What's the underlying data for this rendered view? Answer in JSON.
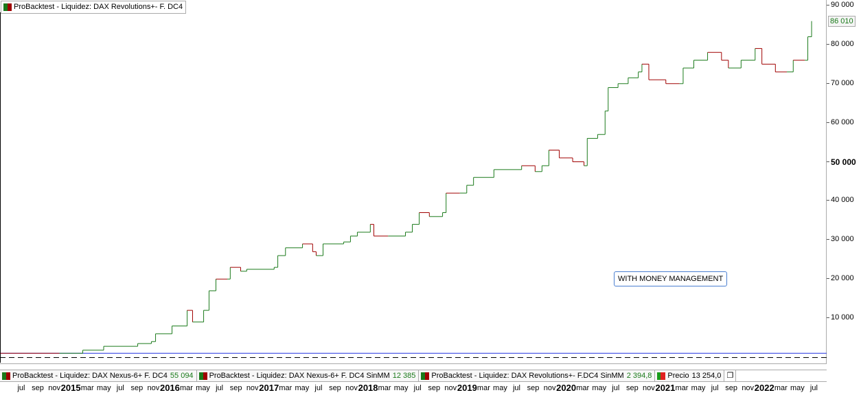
{
  "title": "ProBacktest - Liquidez: DAX Revolutions+- F. DC4",
  "last_value": "86 010",
  "annotation": "WITH MONEY MANAGEMENT",
  "legend": [
    {
      "label": "ProBacktest - Liquidez: DAX Nexus-6+ F. DC4",
      "value": "55 094"
    },
    {
      "label": "ProBacktest - Liquidez: DAX Nexus-6+ F. DC4 SinMM",
      "value": "12 385"
    },
    {
      "label": "ProBacktest - Liquidez: DAX Revolutions+- F.DC4 SinMM",
      "value": "2 394,8"
    },
    {
      "label": "Precio",
      "value": "13 254,0"
    }
  ],
  "colors": {
    "up": "#1a7a1a",
    "down": "#a00000",
    "baseline": "#2030e0",
    "accent_box": "#4a7fd0"
  },
  "chart_data": {
    "type": "line",
    "ylim": [
      0,
      90000
    ],
    "y_ticks": [
      "90 000",
      "80 000",
      "70 000",
      "60 000",
      "50 000",
      "40 000",
      "30 000",
      "20 000",
      "10 000"
    ],
    "x_ticks": [
      "jul",
      "sep",
      "nov",
      "2015",
      "mar",
      "may",
      "jul",
      "sep",
      "nov",
      "2016",
      "mar",
      "may",
      "jul",
      "sep",
      "nov",
      "2017",
      "mar",
      "may",
      "jul",
      "sep",
      "nov",
      "2018",
      "mar",
      "may",
      "jul",
      "sep",
      "nov",
      "2019",
      "mar",
      "may",
      "jul",
      "sep",
      "nov",
      "2020",
      "mar",
      "may",
      "jul",
      "sep",
      "nov",
      "2021",
      "mar",
      "may",
      "jul",
      "sep",
      "nov",
      "2022",
      "mar",
      "may",
      "jul"
    ],
    "baseline": 1000,
    "series": [
      {
        "points": [
          [
            "2014-04-15",
            1000
          ],
          [
            "2014-11-20",
            1000
          ],
          [
            "2015-02-15",
            1800
          ],
          [
            "2015-05-01",
            2800
          ],
          [
            "2015-09-05",
            3500
          ],
          [
            "2015-10-25",
            4000
          ],
          [
            "2015-11-10",
            6000
          ],
          [
            "2016-01-10",
            8000
          ],
          [
            "2016-03-05",
            12000
          ],
          [
            "2016-03-25",
            9000
          ],
          [
            "2016-05-05",
            12000
          ],
          [
            "2016-05-25",
            17000
          ],
          [
            "2016-06-20",
            20000
          ],
          [
            "2016-08-01",
            20000
          ],
          [
            "2016-08-12",
            23000
          ],
          [
            "2016-09-20",
            22000
          ],
          [
            "2016-10-12",
            22500
          ],
          [
            "2017-01-22",
            23000
          ],
          [
            "2017-02-05",
            26000
          ],
          [
            "2017-03-03",
            28000
          ],
          [
            "2017-05-05",
            29000
          ],
          [
            "2017-06-12",
            27000
          ],
          [
            "2017-06-25",
            26000
          ],
          [
            "2017-07-20",
            29000
          ],
          [
            "2017-10-05",
            29500
          ],
          [
            "2017-10-30",
            31000
          ],
          [
            "2017-11-25",
            32000
          ],
          [
            "2018-01-12",
            34000
          ],
          [
            "2018-01-25",
            31000
          ],
          [
            "2018-03-17",
            31000
          ],
          [
            "2018-05-20",
            32000
          ],
          [
            "2018-06-15",
            34000
          ],
          [
            "2018-07-10",
            37000
          ],
          [
            "2018-08-17",
            36000
          ],
          [
            "2018-10-05",
            37000
          ],
          [
            "2018-10-18",
            42000
          ],
          [
            "2018-12-08",
            42000
          ],
          [
            "2019-01-03",
            44000
          ],
          [
            "2019-01-28",
            46000
          ],
          [
            "2019-04-12",
            48000
          ],
          [
            "2019-07-23",
            49000
          ],
          [
            "2019-09-12",
            47500
          ],
          [
            "2019-10-07",
            49000
          ],
          [
            "2019-11-02",
            53000
          ],
          [
            "2019-12-10",
            51000
          ],
          [
            "2020-01-29",
            50000
          ],
          [
            "2020-03-10",
            49000
          ],
          [
            "2020-03-22",
            56000
          ],
          [
            "2020-04-30",
            57000
          ],
          [
            "2020-05-27",
            63000
          ],
          [
            "2020-06-08",
            69000
          ],
          [
            "2020-07-14",
            70000
          ],
          [
            "2020-08-21",
            71500
          ],
          [
            "2020-09-28",
            73000
          ],
          [
            "2020-10-11",
            75000
          ],
          [
            "2020-11-06",
            71000
          ],
          [
            "2021-01-08",
            70000
          ],
          [
            "2021-02-28",
            70000
          ],
          [
            "2021-03-11",
            74000
          ],
          [
            "2021-04-20",
            76000
          ],
          [
            "2021-06-10",
            78000
          ],
          [
            "2021-07-31",
            76000
          ],
          [
            "2021-08-26",
            74000
          ],
          [
            "2021-10-12",
            76000
          ],
          [
            "2021-12-03",
            79000
          ],
          [
            "2021-12-28",
            75000
          ],
          [
            "2022-02-17",
            73000
          ],
          [
            "2022-03-29",
            73000
          ],
          [
            "2022-04-22",
            76000
          ],
          [
            "2022-06-04",
            76000
          ],
          [
            "2022-06-15",
            82000
          ],
          [
            "2022-06-29",
            86010
          ]
        ]
      }
    ]
  }
}
